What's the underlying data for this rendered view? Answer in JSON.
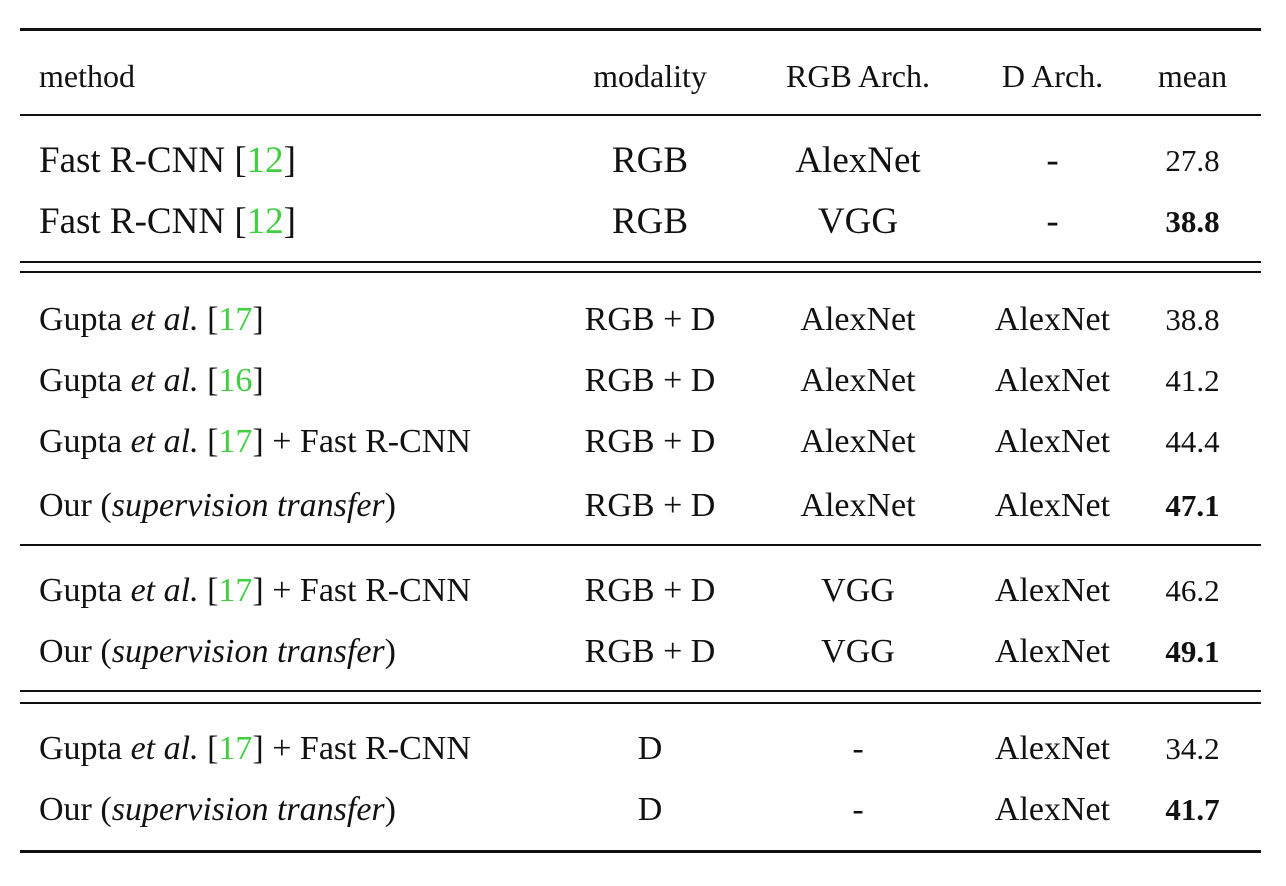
{
  "table": {
    "header": {
      "method": "method",
      "modality": "modality",
      "rgb_arch": "RGB Arch.",
      "d_arch": "D Arch.",
      "mean": "mean"
    },
    "rows": [
      {
        "name": "Fast R-CNN",
        "cite": "12",
        "etal": "",
        "suffix": "",
        "modality": "RGB",
        "rgb_arch": "AlexNet",
        "d_arch": "-",
        "mean": "27.8",
        "bold": false
      },
      {
        "name": "Fast R-CNN",
        "cite": "12",
        "etal": "",
        "suffix": "",
        "modality": "RGB",
        "rgb_arch": "VGG",
        "d_arch": "-",
        "mean": "38.8",
        "bold": true
      },
      {
        "name": "Gupta",
        "etal": "et al.",
        "cite": "17",
        "suffix": "",
        "modality": "RGB + D",
        "rgb_arch": "AlexNet",
        "d_arch": "AlexNet",
        "mean": "38.8",
        "bold": false
      },
      {
        "name": "Gupta",
        "etal": "et al.",
        "cite": "16",
        "suffix": "",
        "modality": "RGB + D",
        "rgb_arch": "AlexNet",
        "d_arch": "AlexNet",
        "mean": "41.2",
        "bold": false
      },
      {
        "name": "Gupta",
        "etal": "et al.",
        "cite": "17",
        "suffix": "+ Fast R-CNN",
        "modality": "RGB + D",
        "rgb_arch": "AlexNet",
        "d_arch": "AlexNet",
        "mean": "44.4",
        "bold": false
      },
      {
        "name": "Our",
        "paren": "supervision transfer",
        "modality": "RGB + D",
        "rgb_arch": "AlexNet",
        "d_arch": "AlexNet",
        "mean": "47.1",
        "bold": true
      },
      {
        "name": "Gupta",
        "etal": "et al.",
        "cite": "17",
        "suffix": "+ Fast R-CNN",
        "modality": "RGB + D",
        "rgb_arch": "VGG",
        "d_arch": "AlexNet",
        "mean": "46.2",
        "bold": false
      },
      {
        "name": "Our",
        "paren": "supervision transfer",
        "modality": "RGB + D",
        "rgb_arch": "VGG",
        "d_arch": "AlexNet",
        "mean": "49.1",
        "bold": true
      },
      {
        "name": "Gupta",
        "etal": "et al.",
        "cite": "17",
        "suffix": "+ Fast R-CNN",
        "modality": "D",
        "rgb_arch": "-",
        "d_arch": "AlexNet",
        "mean": "34.2",
        "bold": false
      },
      {
        "name": "Our",
        "paren": "supervision transfer",
        "modality": "D",
        "rgb_arch": "-",
        "d_arch": "AlexNet",
        "mean": "41.7",
        "bold": true
      }
    ]
  },
  "colors": {
    "citation": "#3fcf3f",
    "text": "#111111",
    "rule": "#111111"
  }
}
